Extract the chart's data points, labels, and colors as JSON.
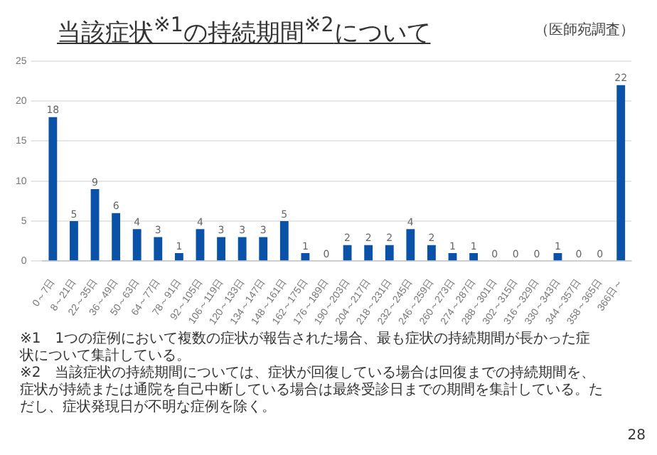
{
  "chart_data": {
    "type": "bar",
    "title": "当該症状$^{※1}$の持続期間$^{※2}$について",
    "subtitle": "（医師宛調査）",
    "categories": [
      "0～7日",
      "8～21日",
      "22～35日",
      "36～49日",
      "50～63日",
      "64～77日",
      "78～91日",
      "92～105日",
      "106～119日",
      "120～133日",
      "134～147日",
      "148～161日",
      "162～175日",
      "176～189日",
      "190～203日",
      "204～217日",
      "218～231日",
      "232～245日",
      "246～259日",
      "260～273日",
      "274～287日",
      "288～301日",
      "302～315日",
      "316～329日",
      "330～343日",
      "344～357日",
      "358～365日",
      "366日～"
    ],
    "values": [
      18,
      5,
      9,
      6,
      4,
      3,
      1,
      4,
      3,
      3,
      3,
      5,
      1,
      0,
      2,
      2,
      2,
      4,
      2,
      1,
      1,
      0,
      0,
      0,
      1,
      0,
      0,
      22
    ],
    "color": "#0a52a8",
    "ylim": [
      0,
      25
    ],
    "yticks": [
      0,
      5,
      10,
      15,
      20,
      25
    ],
    "grid": "y",
    "data_labels": true,
    "annotations": [
      "※1　1つの症例において複数の症状が報告された場合、最も症状の持続期間が長かった症状について集計している。",
      "※2　当該症状の持続期間については、症状が回復している場合は回復までの持続期間を、症状が持続または通院を自己中断している場合は最終受診日までの期間を集計している。ただし、症状発現日が不明な症例を除く。",
      "28"
    ]
  }
}
